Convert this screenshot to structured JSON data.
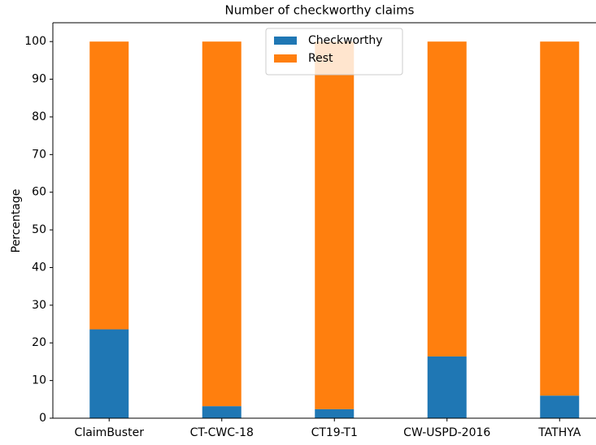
{
  "chart_data": {
    "type": "bar",
    "stacked": true,
    "title": "Number of checkworthy claims",
    "y_label": "Percentage",
    "categories": [
      "ClaimBuster",
      "CT-CWC-18",
      "CT19-T1",
      "CW-USPD-2016",
      "TATHYA"
    ],
    "series": [
      {
        "name": "Checkworthy",
        "color": "#1f77b4",
        "values": [
          23.6,
          3.2,
          2.4,
          16.4,
          6.0
        ]
      },
      {
        "name": "Rest",
        "color": "#ff7f0e",
        "values": [
          76.4,
          96.8,
          97.6,
          83.6,
          94.0
        ]
      }
    ],
    "ylim": [
      0,
      105
    ],
    "yticks": [
      0,
      10,
      20,
      30,
      40,
      50,
      60,
      70,
      80,
      90,
      100
    ],
    "legend": "upper center",
    "grid": false
  }
}
